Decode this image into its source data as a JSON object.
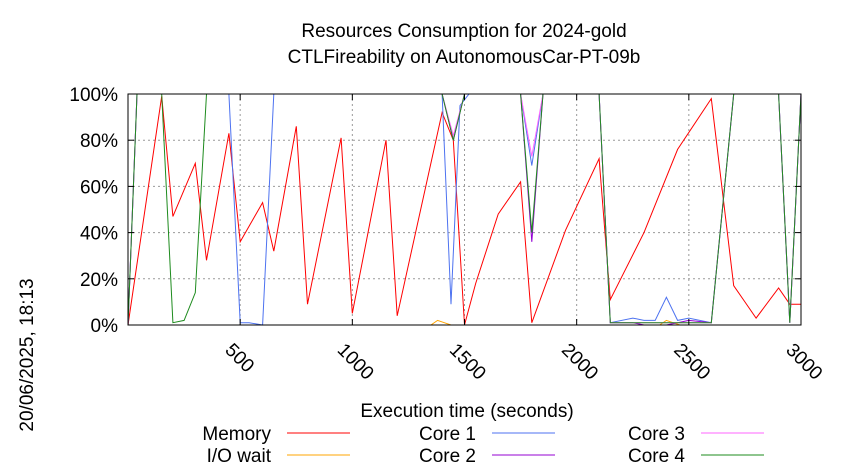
{
  "chart_data": {
    "type": "line",
    "title": "Resources Consumption for 2024-gold",
    "subtitle": "CTLFireability on AutonomousCar-PT-09b",
    "xlabel": "Execution time (seconds)",
    "ylabel": "",
    "side_label": "20/06/2025, 18:13",
    "xlim": [
      0,
      3000
    ],
    "ylim": [
      0,
      100
    ],
    "x_ticks": [
      "500",
      "1000",
      "1500",
      "2000",
      "2500",
      "3000"
    ],
    "x_tick_values": [
      500,
      1000,
      1500,
      2000,
      2500,
      3000
    ],
    "y_ticks": [
      "0%",
      "20%",
      "40%",
      "60%",
      "80%",
      "100%"
    ],
    "y_tick_values": [
      0,
      20,
      40,
      60,
      80,
      100
    ],
    "grid": true,
    "legend_position": "bottom",
    "series": [
      {
        "name": "Memory",
        "color": "#ff0000",
        "x": [
          0,
          150,
          200,
          300,
          350,
          450,
          500,
          600,
          650,
          750,
          800,
          950,
          1000,
          1150,
          1200,
          1400,
          1450,
          1500,
          1550,
          1650,
          1750,
          1800,
          1950,
          2100,
          2150,
          2300,
          2450,
          2600,
          2700,
          2750,
          2800,
          2900,
          2950,
          3000
        ],
        "y": [
          0,
          99,
          47,
          70,
          28,
          83,
          36,
          53,
          32,
          86,
          9,
          81,
          5,
          80,
          4,
          92,
          80,
          0,
          18,
          48,
          62,
          1,
          41,
          72,
          11,
          40,
          76,
          98,
          17,
          10,
          3,
          16,
          9,
          9
        ]
      },
      {
        "name": "I/O wait",
        "color": "#ffa500",
        "x": [
          0,
          1350,
          1380,
          1410,
          1440,
          2150,
          2370,
          2400,
          2430,
          2460,
          3000
        ],
        "y": [
          0,
          0,
          2,
          1,
          0,
          0,
          0,
          2,
          1,
          0,
          0
        ]
      },
      {
        "name": "Core 1",
        "color": "#4d72f0",
        "x": [
          0,
          40,
          150,
          350,
          450,
          500,
          540,
          600,
          650,
          700,
          1000,
          1400,
          1440,
          1480,
          1520,
          1600,
          1750,
          1800,
          1850,
          2100,
          2150,
          2250,
          2300,
          2350,
          2400,
          2450,
          2500,
          2600,
          2700,
          2900,
          2950,
          3000
        ],
        "y": [
          0,
          100,
          100,
          100,
          100,
          1,
          1,
          0,
          100,
          100,
          100,
          100,
          9,
          95,
          100,
          100,
          100,
          69,
          100,
          100,
          1,
          3,
          2,
          2,
          12,
          2,
          3,
          1,
          100,
          100,
          1,
          100
        ]
      },
      {
        "name": "Core 2",
        "color": "#9400d3",
        "x": [
          0,
          40,
          1400,
          1450,
          1500,
          1750,
          1800,
          1850,
          2100,
          2150,
          2250,
          2300,
          2400,
          2450,
          2500,
          2600,
          2700,
          2900,
          2950,
          3000
        ],
        "y": [
          0,
          100,
          100,
          80,
          100,
          100,
          36,
          100,
          100,
          1,
          1,
          0,
          0,
          1,
          2,
          1,
          100,
          100,
          1,
          100
        ]
      },
      {
        "name": "Core 3",
        "color": "#ff66ff",
        "x": [
          0,
          40,
          1400,
          1450,
          1500,
          1750,
          1800,
          1850,
          2100,
          2150,
          2600,
          2700,
          2900,
          2950,
          3000
        ],
        "y": [
          0,
          100,
          100,
          82,
          100,
          100,
          73,
          100,
          100,
          1,
          1,
          100,
          100,
          1,
          100
        ]
      },
      {
        "name": "Core 4",
        "color": "#1e8b1e",
        "x": [
          0,
          40,
          150,
          200,
          250,
          300,
          350,
          1400,
          1450,
          1500,
          1750,
          1800,
          1850,
          2100,
          2150,
          2600,
          2700,
          2900,
          2950,
          3000
        ],
        "y": [
          0,
          100,
          100,
          1,
          2,
          14,
          100,
          100,
          80,
          100,
          100,
          40,
          100,
          100,
          1,
          1,
          100,
          100,
          1,
          100
        ]
      }
    ]
  }
}
